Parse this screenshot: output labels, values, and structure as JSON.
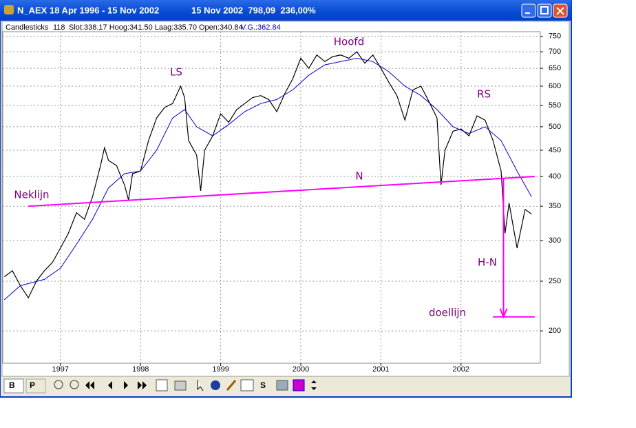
{
  "window": {
    "title": "N_AEX 18 Apr 1996 - 15 Nov 2002",
    "status": "15 Nov 2002  798,09  236,00%"
  },
  "info_bar": {
    "mode": "Candlesticks",
    "count": "118",
    "ohlc": "Slot:338.17 Hoog:341.50 Laag:335.70 Open:340.84",
    "ma": "V.G.:362.84"
  },
  "toolbar": {
    "buttons": [
      "B",
      "P",
      "S"
    ]
  },
  "chart_data": {
    "type": "line",
    "log_scale": true,
    "grid": true,
    "xlim": [
      1996.28,
      2002.99
    ],
    "xticks": [
      1997,
      1998,
      1999,
      2000,
      2001,
      2002
    ],
    "ylim": [
      173,
      766
    ],
    "yticks": [
      200,
      250,
      300,
      350,
      400,
      450,
      500,
      550,
      600,
      650,
      700,
      750
    ],
    "series": [
      {
        "color": "#000000",
        "x": [
          1996.3,
          1996.4,
          1996.5,
          1996.6,
          1996.7,
          1996.8,
          1996.9,
          1997.0,
          1997.1,
          1997.2,
          1997.3,
          1997.4,
          1997.5,
          1997.55,
          1997.6,
          1997.7,
          1997.8,
          1997.85,
          1997.9,
          1998.0,
          1998.1,
          1998.2,
          1998.3,
          1998.4,
          1998.5,
          1998.55,
          1998.6,
          1998.7,
          1998.75,
          1998.8,
          1998.9,
          1999.0,
          1999.1,
          1999.2,
          1999.3,
          1999.4,
          1999.5,
          1999.6,
          1999.7,
          1999.8,
          1999.9,
          2000.0,
          2000.1,
          2000.2,
          2000.3,
          2000.4,
          2000.5,
          2000.6,
          2000.7,
          2000.8,
          2000.9,
          2001.0,
          2001.1,
          2001.2,
          2001.3,
          2001.4,
          2001.5,
          2001.6,
          2001.7,
          2001.75,
          2001.8,
          2001.9,
          2002.0,
          2002.1,
          2002.2,
          2002.3,
          2002.4,
          2002.5,
          2002.55,
          2002.6,
          2002.7,
          2002.8,
          2002.88
        ],
        "values": [
          255,
          262,
          245,
          232,
          250,
          262,
          272,
          290,
          310,
          340,
          330,
          365,
          420,
          455,
          430,
          420,
          385,
          360,
          405,
          410,
          470,
          520,
          545,
          555,
          600,
          570,
          470,
          440,
          375,
          450,
          480,
          530,
          510,
          540,
          555,
          570,
          575,
          565,
          535,
          580,
          620,
          680,
          650,
          690,
          670,
          685,
          690,
          680,
          700,
          665,
          690,
          650,
          610,
          575,
          515,
          590,
          600,
          560,
          520,
          385,
          450,
          490,
          495,
          480,
          525,
          515,
          470,
          410,
          310,
          355,
          290,
          345,
          338
        ]
      },
      {
        "color": "#0000cc",
        "x": [
          1996.3,
          1996.5,
          1996.8,
          1997.0,
          1997.2,
          1997.4,
          1997.6,
          1997.8,
          1998.0,
          1998.2,
          1998.4,
          1998.55,
          1998.7,
          1998.9,
          1999.1,
          1999.3,
          1999.5,
          1999.7,
          1999.9,
          2000.1,
          2000.3,
          2000.5,
          2000.7,
          2000.9,
          2001.1,
          2001.3,
          2001.5,
          2001.7,
          2001.9,
          2002.1,
          2002.3,
          2002.5,
          2002.7,
          2002.88
        ],
        "values": [
          230,
          245,
          252,
          265,
          295,
          330,
          380,
          405,
          410,
          450,
          520,
          540,
          500,
          480,
          505,
          535,
          555,
          565,
          590,
          630,
          660,
          670,
          680,
          670,
          640,
          600,
          575,
          540,
          500,
          485,
          500,
          470,
          410,
          365
        ]
      }
    ],
    "lines": [
      {
        "color": "#ff00ff",
        "x": [
          1996.6,
          2002.92
        ],
        "values": [
          350,
          400
        ]
      },
      {
        "color": "#ff00ff",
        "x": [
          2002.4,
          2002.92
        ],
        "values": [
          213,
          213
        ]
      },
      {
        "color": "#ff00ff",
        "x": [
          2002.53,
          2002.53
        ],
        "values": [
          398,
          213
        ]
      }
    ],
    "annotations": [
      "LS",
      "Hoofd",
      "RS",
      "N",
      "Neklijn",
      "H-N",
      "doellijn"
    ]
  }
}
